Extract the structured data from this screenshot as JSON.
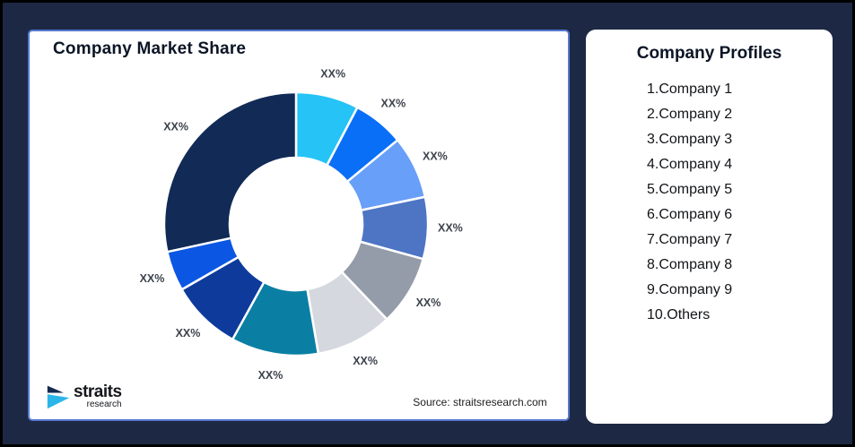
{
  "page": {
    "background_color": "#1d2944",
    "frame_border_color": "#000000"
  },
  "left_card": {
    "title": "Company Market Share",
    "border_color": "#5577d0",
    "source_text": "Source: straitsresearch.com",
    "logo": {
      "primary": "straits",
      "secondary": "research",
      "mark_dark_color": "#152a50",
      "mark_cyan_color": "#2ab6e8"
    }
  },
  "right_card": {
    "title": "Company Profiles",
    "items": [
      "1.Company 1",
      "2.Company 2",
      "3.Company 3",
      "4.Company 4",
      "5.Company 5",
      "6.Company 6",
      "7.Company 7",
      "8.Company 8",
      "9.Company 9",
      "10.Others"
    ]
  },
  "chart_data": {
    "type": "pie",
    "subtype": "donut",
    "title": "Company Market Share",
    "direction": "clockwise",
    "start_angle_deg": 0,
    "inner_radius_ratio": 0.5,
    "values_masked": true,
    "label_text": "XX%",
    "label_color": "#3c424c",
    "segment_gap_color": "#ffffff",
    "segments": [
      {
        "name": "Company 1",
        "label": "XX%",
        "value_pct": 7.7,
        "color": "#25c3f6"
      },
      {
        "name": "Company 2",
        "label": "XX%",
        "value_pct": 6.3,
        "color": "#0a6ff7"
      },
      {
        "name": "Company 3",
        "label": "XX%",
        "value_pct": 7.7,
        "color": "#689ff8"
      },
      {
        "name": "Company 4",
        "label": "XX%",
        "value_pct": 7.6,
        "color": "#4d75c4"
      },
      {
        "name": "Company 5",
        "label": "XX%",
        "value_pct": 8.6,
        "color": "#949ca9"
      },
      {
        "name": "Company 6",
        "label": "XX%",
        "value_pct": 9.4,
        "color": "#d5d8de"
      },
      {
        "name": "Company 7",
        "label": "XX%",
        "value_pct": 10.7,
        "color": "#0a7fa3"
      },
      {
        "name": "Company 8",
        "label": "XX%",
        "value_pct": 8.7,
        "color": "#0d3a9b"
      },
      {
        "name": "Company 9",
        "label": "XX%",
        "value_pct": 4.9,
        "color": "#0b57e3"
      },
      {
        "name": "Others",
        "label": "XX%",
        "value_pct": 28.4,
        "color": "#112a56"
      }
    ]
  }
}
